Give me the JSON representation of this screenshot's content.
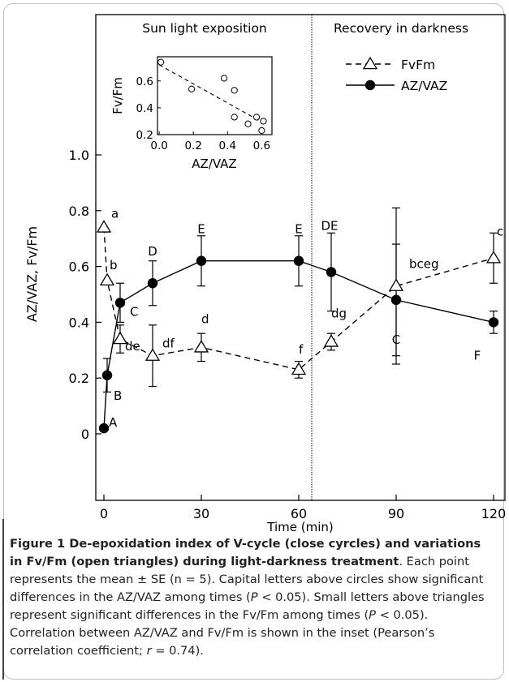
{
  "chart_data": {
    "type": "line",
    "xlabel": "Time (min)",
    "ylabel": "AZ/VAZ, Fv/Fm",
    "xlim": [
      -3,
      126
    ],
    "ylim": [
      0,
      1.25
    ],
    "xticks": [
      "0",
      "30",
      "60",
      "90",
      "120"
    ],
    "yticks": [
      "0",
      "0.2",
      "0.4",
      "0.6",
      "0.8",
      "1.0"
    ],
    "ytick_values": [
      0,
      0.2,
      0.4,
      0.6,
      0.8,
      1.0
    ],
    "xtick_values": [
      0,
      30,
      60,
      90,
      120
    ],
    "divider_x": 64,
    "region_labels": [
      "Sun light exposition",
      "Recovery in darkness"
    ],
    "legend_position": "top-right",
    "series": [
      {
        "name": "FvFm",
        "marker": "open-triangle",
        "line": "dashed",
        "x": [
          0,
          1,
          5,
          15,
          30,
          60,
          70,
          90,
          120
        ],
        "y": [
          0.74,
          0.55,
          0.34,
          0.28,
          0.31,
          0.23,
          0.33,
          0.53,
          0.63
        ],
        "err": [
          0.0,
          0.0,
          0.05,
          0.11,
          0.05,
          0.03,
          0.03,
          0.28,
          0.09
        ],
        "labels": [
          "a",
          "b",
          "de",
          "df",
          "d",
          "f",
          "dg",
          "bceg",
          "c"
        ]
      },
      {
        "name": "AZ/VAZ",
        "marker": "filled-circle",
        "line": "solid",
        "x": [
          0,
          1,
          5,
          15,
          30,
          60,
          70,
          90,
          120
        ],
        "y": [
          0.02,
          0.21,
          0.47,
          0.54,
          0.62,
          0.62,
          0.58,
          0.48,
          0.4
        ],
        "err": [
          0.0,
          0.06,
          0.07,
          0.08,
          0.09,
          0.09,
          0.14,
          0.2,
          0.04
        ],
        "labels": [
          "A",
          "B",
          "C",
          "D",
          "E",
          "E",
          "DE",
          "C",
          "F"
        ]
      }
    ],
    "inset": {
      "type": "scatter",
      "xlabel": "AZ/VAZ",
      "ylabel": "Fv/Fm",
      "xlim": [
        -0.01,
        0.66
      ],
      "ylim": [
        0.2,
        0.78
      ],
      "xticks": [
        "0.0",
        "0.2",
        "0.4",
        "0.6"
      ],
      "xtick_values": [
        0.0,
        0.2,
        0.4,
        0.6
      ],
      "yticks": [
        "0.6",
        "0.4",
        "0.2"
      ],
      "ytick_values": [
        0.6,
        0.4,
        0.2
      ],
      "x": [
        0.01,
        0.19,
        0.38,
        0.44,
        0.44,
        0.52,
        0.57,
        0.6,
        0.61
      ],
      "y": [
        0.74,
        0.54,
        0.62,
        0.53,
        0.33,
        0.28,
        0.33,
        0.23,
        0.3
      ],
      "trend": [
        [
          0.0,
          0.72
        ],
        [
          0.62,
          0.28
        ]
      ]
    }
  },
  "caption": {
    "figure_label": "Figure 1",
    "title": " De-epoxidation index of V-cycle (close cyrcles) and variations in Fv/Fm (open triangles) during light-darkness treatment",
    "body_1": ". Each point represents the mean ± SE (n = 5). Capital letters above circles show significant differences in the AZ/VAZ among times (",
    "p_symbol": "P",
    "body_2": " < 0.05). Small letters above triangles represent significant differences in the Fv/Fm among times (",
    "body_3": " < 0.05). Correlation between AZ/VAZ and Fv/Fm is shown in the inset (Pearson’s correlation coefficient; ",
    "r_symbol": "r",
    "body_4": " = 0.74)."
  }
}
